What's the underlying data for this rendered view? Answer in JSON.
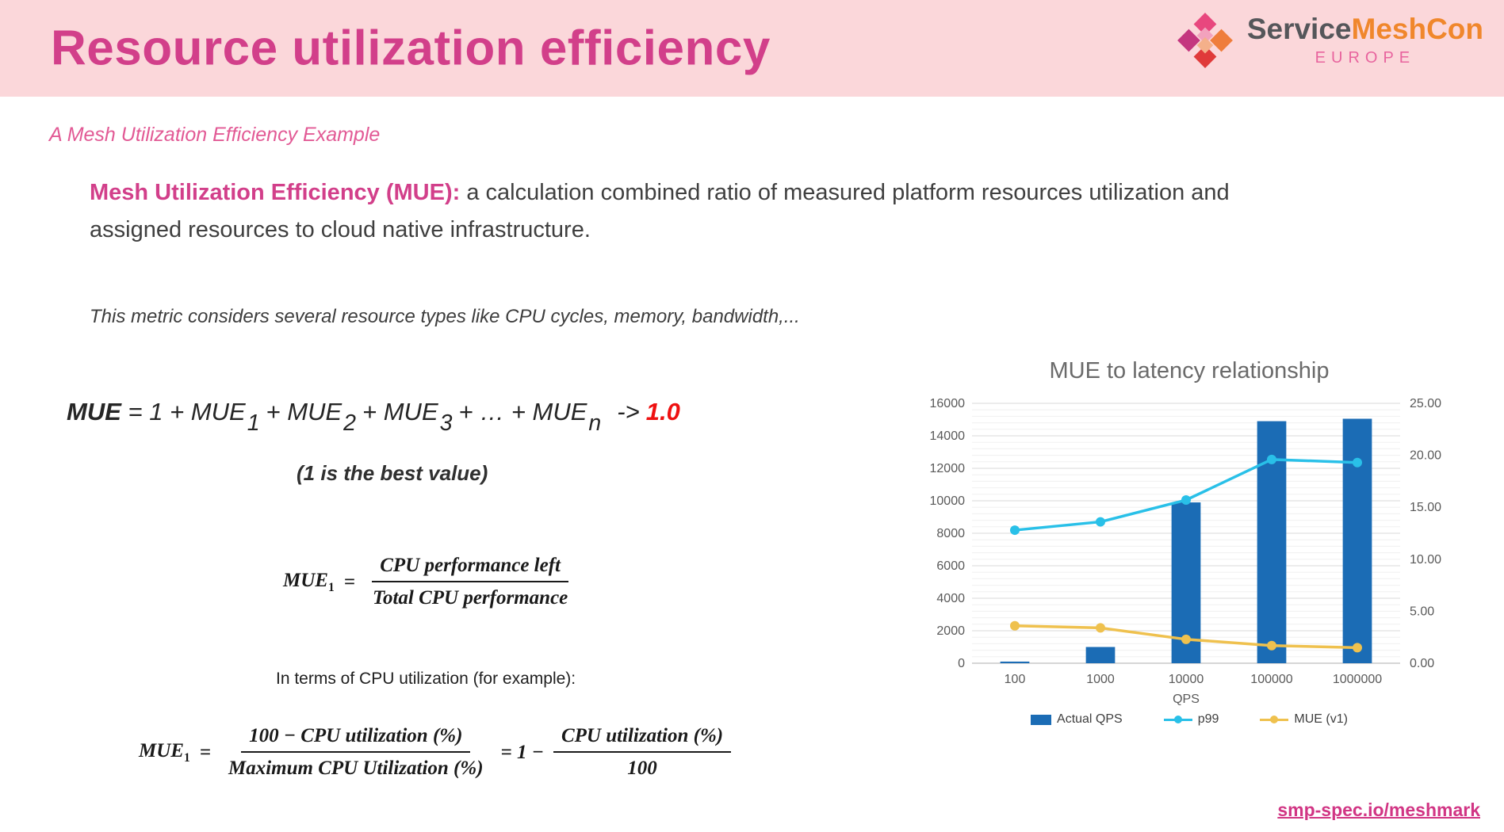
{
  "slide": {
    "title": "Resource utilization efficiency",
    "subtitle": "A Mesh Utilization Efficiency Example",
    "paragraph_lead": "Mesh Utilization Efficiency (MUE):",
    "paragraph_rest": " a calculation combined ratio of measured platform resources utilization and assigned resources to cloud native infrastructure.",
    "note": "This metric considers several resource types like CPU cycles, memory, bandwidth,...",
    "best_value_note": "(1 is the best value)",
    "cpu_note": "In terms of CPU utilization (for example):",
    "link": "smp-spec.io/meshmark"
  },
  "logo": {
    "brand_primary": "Service",
    "brand_secondary": "MeshCon",
    "region": "EUROPE"
  },
  "formula_line": {
    "lead": "MUE",
    "body1": " = 1 + MUE",
    "sub1": "1",
    "body2": "+ MUE",
    "sub2": "2",
    "body3": "+ MUE",
    "sub3": "3",
    "body4": "+ … + MUE",
    "subn": "n",
    "arrow": "->",
    "value": "1.0"
  },
  "fraction1": {
    "lhs_base": "MUE",
    "lhs_sub": "1",
    "equals": "=",
    "numerator": "CPU performance left",
    "denominator": "Total CPU performance"
  },
  "fraction2": {
    "lhs_base": "MUE",
    "lhs_sub": "1",
    "equals": "=",
    "num1": "100 − CPU utilization (%)",
    "den1": "Maximum CPU Utilization (%)",
    "mid": "= 1 −",
    "num2": "CPU utilization (%)",
    "den2": "100"
  },
  "colors": {
    "accent_pink": "#d23f8a",
    "header_band": "#fbd7da",
    "highlight_red": "#ee1111",
    "brand_gray": "#55565a",
    "brand_orange": "#f0872c",
    "bar_blue": "#1b6cb5",
    "line_cyan": "#29c0e8",
    "line_yellow": "#efc14e"
  },
  "chart_data": {
    "type": "bar",
    "title": "MUE to latency relationship",
    "categories": [
      "100",
      "1000",
      "10000",
      "100000",
      "1000000"
    ],
    "xlabel": "QPS",
    "left_axis": {
      "min": 0,
      "max": 16000,
      "step": 2000,
      "minor_step": 400
    },
    "right_axis": {
      "min": 0,
      "max": 25,
      "step": 5
    },
    "grid": true,
    "legend_position": "bottom",
    "series": [
      {
        "name": "Actual QPS",
        "type": "bar",
        "axis": "left",
        "color": "#1b6cb5",
        "values": [
          100,
          1000,
          9900,
          14900,
          15050
        ]
      },
      {
        "name": "p99",
        "type": "line",
        "axis": "right",
        "color": "#29c0e8",
        "values": [
          12.8,
          13.6,
          15.7,
          19.6,
          19.3
        ]
      },
      {
        "name": "MUE (v1)",
        "type": "line",
        "axis": "right",
        "color": "#efc14e",
        "values": [
          3.6,
          3.4,
          2.3,
          1.7,
          1.5
        ]
      }
    ]
  }
}
